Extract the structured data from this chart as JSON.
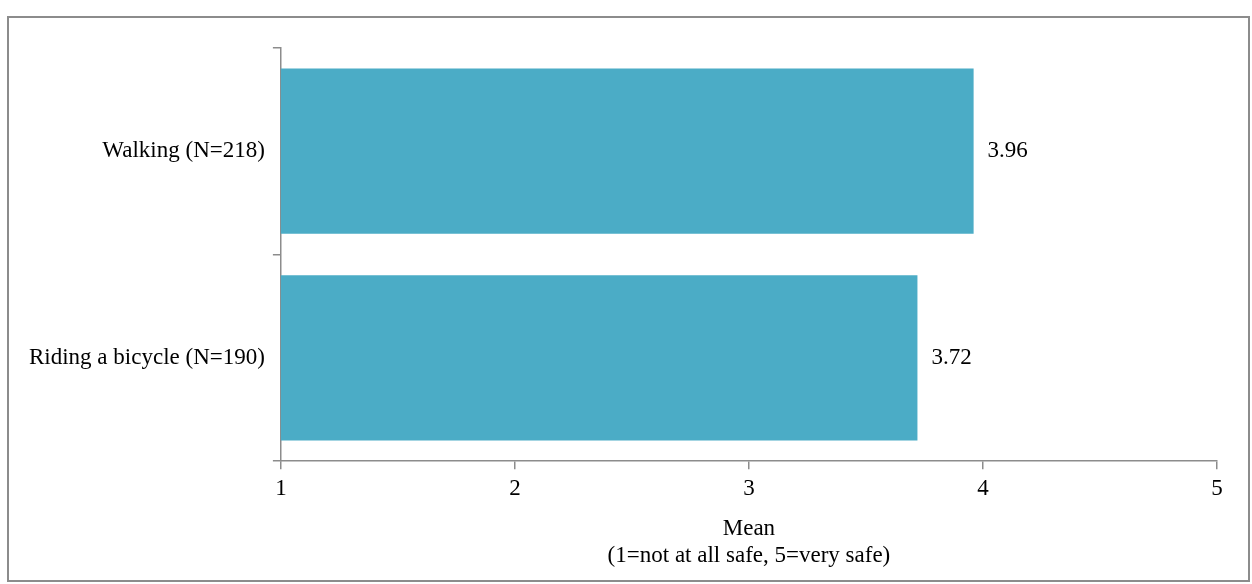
{
  "chart_data": {
    "type": "bar",
    "orientation": "horizontal",
    "categories": [
      "Walking (N=218)",
      "Riding a bicycle (N=190)"
    ],
    "values": [
      3.96,
      3.72
    ],
    "color": "#4bacc6",
    "xlabel": "Mean\n(1=not at all safe, 5=very safe)",
    "xlim": [
      1,
      5
    ],
    "xticks": [
      1,
      2,
      3,
      4,
      5
    ],
    "data_labels": true,
    "grid": false,
    "legend": false
  }
}
